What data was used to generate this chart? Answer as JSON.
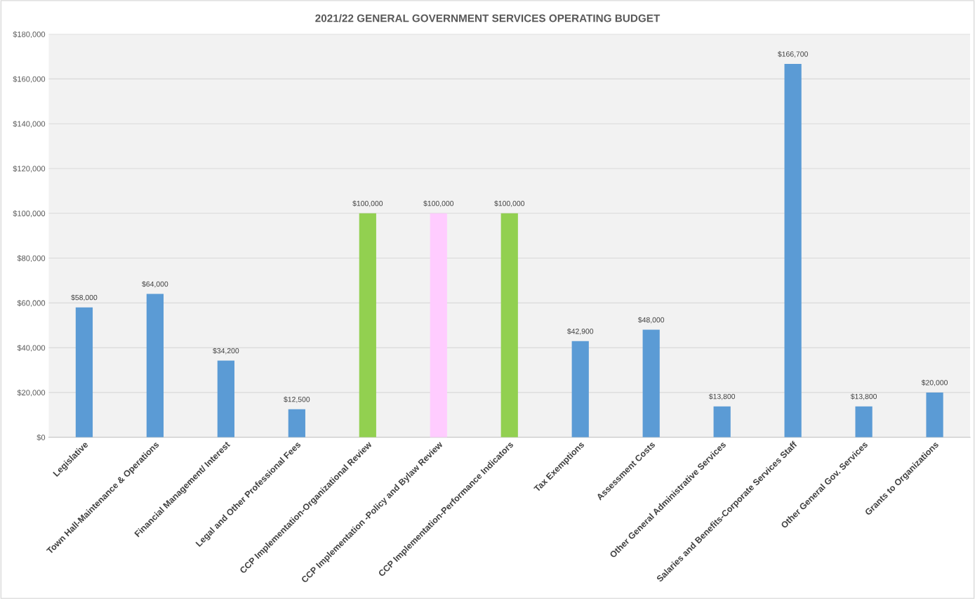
{
  "chart_data": {
    "type": "bar",
    "title": "2021/22 GENERAL GOVERNMENT SERVICES OPERATING BUDGET",
    "categories": [
      "Legislative",
      "Town Hall-Maintenance & Operations",
      "Financial Management/ Interest",
      "Legal and Other Professional Fees",
      "CCP Implementation-Organizational Review",
      "CCP Implementation -Policy and Bylaw Review",
      "CCP Implementation-Performance Indicators",
      "Tax Exemptions",
      "Assessment Costs",
      "Other General Administrative Services",
      "Salaries and Benefits-Corporate Services Staff",
      "Other General Gov. Services",
      "Grants to Organizations"
    ],
    "values": [
      58000,
      64000,
      34200,
      12500,
      100000,
      100000,
      100000,
      42900,
      48000,
      13800,
      166700,
      13800,
      20000
    ],
    "colors": [
      "#5b9bd5",
      "#5b9bd5",
      "#5b9bd5",
      "#5b9bd5",
      "#92d050",
      "#ffccff",
      "#92d050",
      "#5b9bd5",
      "#5b9bd5",
      "#5b9bd5",
      "#5b9bd5",
      "#5b9bd5",
      "#5b9bd5"
    ],
    "value_labels": [
      "$58,000",
      "$64,000",
      "$34,200",
      "$12,500",
      "$100,000",
      "$100,000",
      "$100,000",
      "$42,900",
      "$48,000",
      "$13,800",
      "$166,700",
      "$13,800",
      "$20,000"
    ],
    "ylim": [
      0,
      180000
    ],
    "yticks": [
      {
        "value": 0,
        "label": "$0"
      },
      {
        "value": 20000,
        "label": "$20,000"
      },
      {
        "value": 40000,
        "label": "$40,000"
      },
      {
        "value": 60000,
        "label": "$60,000"
      },
      {
        "value": 80000,
        "label": "$80,000"
      },
      {
        "value": 100000,
        "label": "$100,000"
      },
      {
        "value": 120000,
        "label": "$120,000"
      },
      {
        "value": 140000,
        "label": "$140,000"
      },
      {
        "value": 160000,
        "label": "$160,000"
      },
      {
        "value": 180000,
        "label": "$180,000"
      }
    ],
    "grid": "y",
    "legend": false
  }
}
